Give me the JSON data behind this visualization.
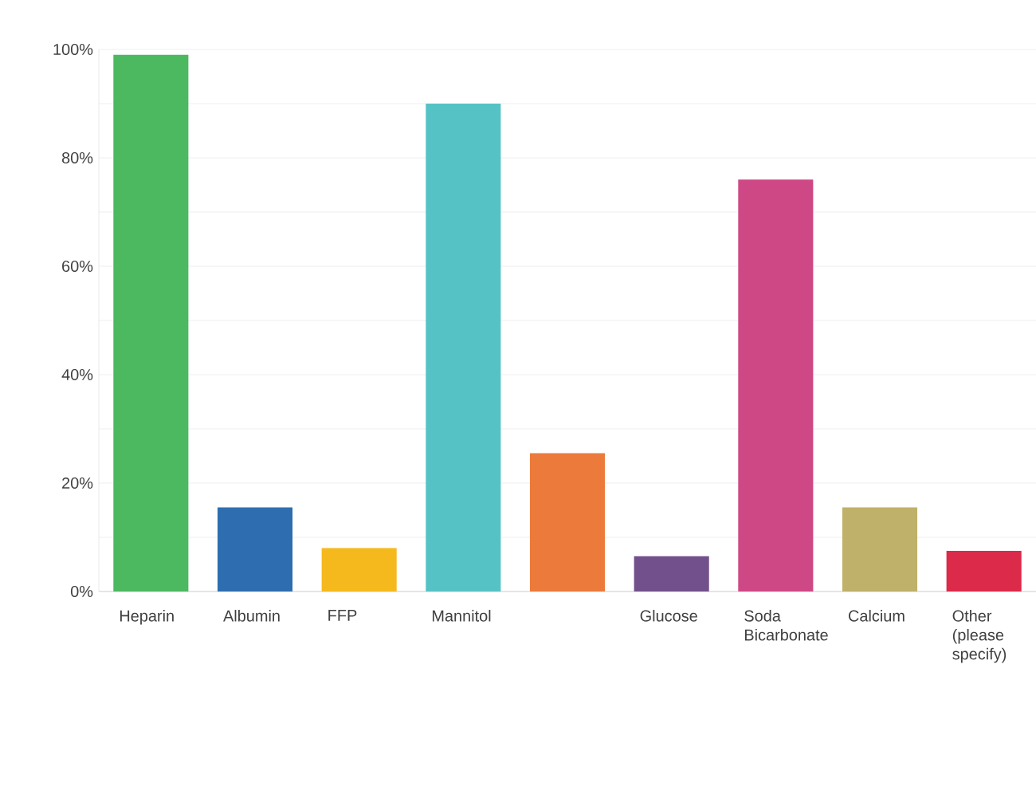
{
  "chart_data": {
    "type": "bar",
    "categories": [
      "Heparin",
      "Albumin",
      "FFP",
      "Mannitol",
      null,
      "Glucose",
      "Soda Bicarbonate",
      "Calcium",
      "Other (please specify)"
    ],
    "values": [
      99,
      15.5,
      8,
      90,
      25.5,
      6.5,
      76,
      15.5,
      7.5
    ],
    "colors": [
      "#4cb860",
      "#2e6eb0",
      "#f5b91e",
      "#55c3c6",
      "#ec7b3b",
      "#72508c",
      "#cf4886",
      "#bfb06a",
      "#dc2a4a"
    ],
    "ylim": [
      0,
      100
    ],
    "yticks": [
      {
        "value": 0,
        "label": "0%"
      },
      {
        "value": 10,
        "label": null
      },
      {
        "value": 20,
        "label": "20%"
      },
      {
        "value": 30,
        "label": null
      },
      {
        "value": 40,
        "label": "40%"
      },
      {
        "value": 50,
        "label": null
      },
      {
        "value": 60,
        "label": "60%"
      },
      {
        "value": 70,
        "label": null
      },
      {
        "value": 80,
        "label": "80%"
      },
      {
        "value": 90,
        "label": null
      },
      {
        "value": 100,
        "label": "100%"
      }
    ],
    "grid": "y"
  }
}
